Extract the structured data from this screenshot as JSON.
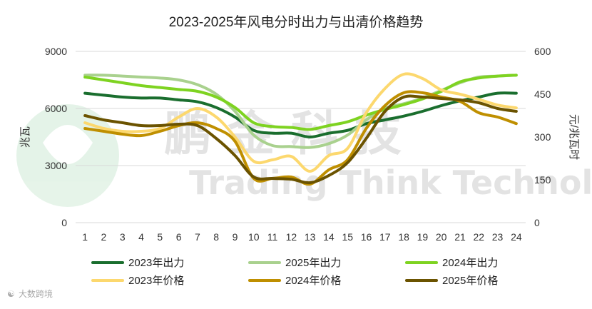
{
  "watermark": {
    "logo_letters": "鹏 金 科 技",
    "text": "Trading Think Technology"
  },
  "footer": {
    "text": "大数跨境"
  },
  "chart_data": {
    "type": "line",
    "title": "2023-2025年风电分时出力与出清价格趋势",
    "ylabel_left": "兆瓦",
    "ylabel_right": "元/兆瓦时",
    "x": [
      1,
      2,
      3,
      4,
      5,
      6,
      7,
      8,
      9,
      10,
      11,
      12,
      13,
      14,
      15,
      16,
      17,
      18,
      19,
      20,
      21,
      22,
      23,
      24
    ],
    "x_tick_labels": [
      "1",
      "2",
      "3",
      "4",
      "5",
      "6",
      "7",
      "8",
      "9",
      "10",
      "11",
      "12",
      "13",
      "14",
      "15",
      "16",
      "17",
      "18",
      "19",
      "20",
      "21",
      "22",
      "23",
      "24"
    ],
    "y_left": {
      "min": 0,
      "max": 9000,
      "ticks": [
        "0",
        "3000",
        "6000",
        "9000"
      ],
      "tick_values": [
        0,
        3000,
        6000,
        9000
      ]
    },
    "y_right": {
      "min": 0,
      "max": 600,
      "ticks": [
        "0",
        "150",
        "300",
        "450",
        "600"
      ],
      "tick_values": [
        0,
        150,
        300,
        450,
        600
      ]
    },
    "grid": true,
    "legend_position": "bottom",
    "series": [
      {
        "name": "2023年出力",
        "axis": "left",
        "color": "#1a6e2e",
        "values": [
          6800,
          6700,
          6600,
          6550,
          6550,
          6450,
          6350,
          6050,
          5550,
          4850,
          4700,
          4700,
          4500,
          4700,
          4850,
          5200,
          5400,
          5600,
          5850,
          6150,
          6400,
          6600,
          6800,
          6800
        ]
      },
      {
        "name": "2025年出力",
        "axis": "left",
        "color": "#a9d18e",
        "values": [
          7750,
          7750,
          7700,
          7650,
          7600,
          7500,
          7250,
          6750,
          5850,
          4600,
          4050,
          4000,
          3950,
          4150,
          4600,
          5400,
          6000,
          6250,
          6550,
          6950,
          7350,
          7650,
          7700,
          7750
        ]
      },
      {
        "name": "2024年出力",
        "axis": "left",
        "color": "#7ed321",
        "values": [
          7650,
          7500,
          7350,
          7200,
          7100,
          7000,
          6900,
          6600,
          6050,
          5250,
          5050,
          5000,
          4900,
          5100,
          5300,
          5650,
          5950,
          6200,
          6500,
          6900,
          7400,
          7600,
          7700,
          7750
        ]
      },
      {
        "name": "2023年价格",
        "axis": "right",
        "color": "#fcd86e",
        "values": [
          350,
          330,
          320,
          320,
          330,
          370,
          400,
          370,
          300,
          215,
          220,
          232,
          180,
          235,
          260,
          385,
          470,
          520,
          505,
          465,
          450,
          432,
          412,
          402
        ]
      },
      {
        "name": "2024年价格",
        "axis": "right",
        "color": "#bf8f00",
        "values": [
          330,
          320,
          310,
          305,
          320,
          340,
          350,
          330,
          285,
          155,
          155,
          160,
          135,
          185,
          220,
          330,
          410,
          455,
          455,
          440,
          425,
          385,
          370,
          347
        ]
      },
      {
        "name": "2025年价格",
        "axis": "right",
        "color": "#6b5300",
        "values": [
          375,
          360,
          350,
          340,
          340,
          345,
          340,
          295,
          235,
          160,
          155,
          152,
          140,
          165,
          210,
          295,
          390,
          440,
          440,
          435,
          430,
          420,
          400,
          390
        ]
      }
    ]
  }
}
